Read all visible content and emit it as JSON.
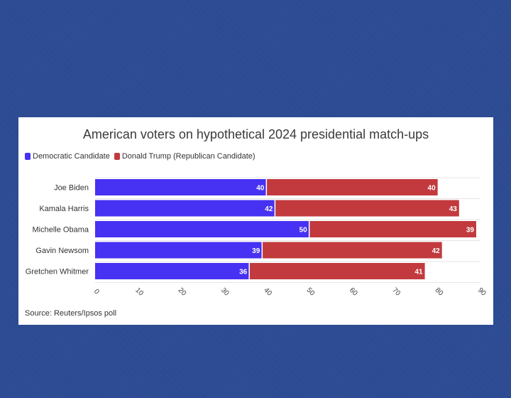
{
  "colors": {
    "democratic": "#4731f2",
    "republican": "#c23a3e"
  },
  "chart_data": {
    "type": "bar",
    "orientation": "horizontal",
    "stacked": true,
    "title": "American voters on hypothetical 2024 presidential match-ups",
    "source": "Source: Reuters/Ipsos poll",
    "categories": [
      "Joe Biden",
      "Kamala Harris",
      "Michelle Obama",
      "Gavin Newsom",
      "Gretchen Whitmer"
    ],
    "series": [
      {
        "name": "Democratic Candidate",
        "values": [
          40,
          42,
          50,
          39,
          36
        ]
      },
      {
        "name": "Donald Trump (Republican Candidate)",
        "values": [
          40,
          43,
          39,
          42,
          41
        ]
      }
    ],
    "xlim": [
      0,
      90
    ],
    "xticks": [
      "0",
      "10",
      "20",
      "30",
      "40",
      "50",
      "60",
      "70",
      "80",
      "90"
    ],
    "grid": true,
    "legend": "top-left"
  }
}
